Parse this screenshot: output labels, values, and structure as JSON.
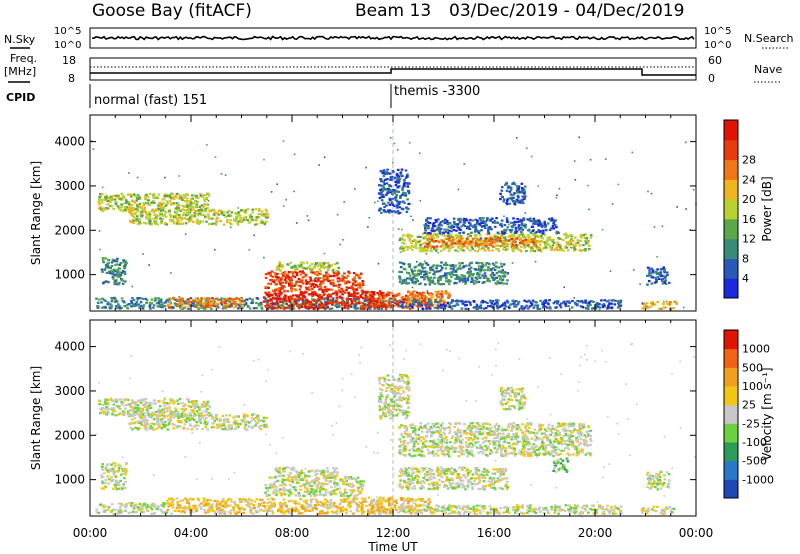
{
  "header": {
    "site": "Goose Bay (fitACF)",
    "beam": "Beam 13",
    "dates": "03/Dec/2019 - 04/Dec/2019"
  },
  "strips": {
    "nsky_label": "N.Sky",
    "nsky_ticks": [
      "10^5",
      "10^0"
    ],
    "nsearch_label": "N.Search",
    "nsearch_ticks": [
      "10^5",
      "10^0"
    ],
    "freq_label": "Freq.",
    "freq_unit": "[MHz]",
    "freq_ticks": [
      "18",
      "8"
    ],
    "nave_label": "Nave",
    "nave_ticks": [
      "60",
      "0"
    ],
    "cpid_label": "CPID",
    "cpid_segments": [
      {
        "label": "normal (fast) 151",
        "start_hour": 0,
        "end_hour": 12
      },
      {
        "label": "themis -3300",
        "start_hour": 12,
        "end_hour": 24
      }
    ]
  },
  "chart_data": [
    {
      "type": "heatmap",
      "name": "power",
      "ylabel": "Slant Range [km]",
      "yticks": [
        1000,
        2000,
        3000,
        4000
      ],
      "ylim": [
        180,
        4600
      ],
      "xlim": [
        0,
        24
      ],
      "colorbar": {
        "label": "Power [dB]",
        "ticks": [
          "4",
          "8",
          "12",
          "16",
          "20",
          "24",
          "28"
        ],
        "colors": [
          "#1a28e0",
          "#2a5ab8",
          "#3a8a78",
          "#5aa84a",
          "#b8d232",
          "#f0b41e",
          "#f07814",
          "#e83c0a",
          "#e01400"
        ]
      },
      "regions": [
        {
          "x0": 0.3,
          "x1": 4.7,
          "y0": 2450,
          "y1": 2850,
          "level": 4
        },
        {
          "x0": 1.5,
          "x1": 7.0,
          "y0": 2150,
          "y1": 2500,
          "level": 4
        },
        {
          "x0": 0.4,
          "x1": 1.4,
          "y0": 800,
          "y1": 1400,
          "level": 2
        },
        {
          "x0": 0.2,
          "x1": 12.2,
          "y0": 250,
          "y1": 500,
          "level": 2
        },
        {
          "x0": 3.0,
          "x1": 6.0,
          "y0": 280,
          "y1": 500,
          "level": 6
        },
        {
          "x0": 6.8,
          "x1": 11.6,
          "y0": 250,
          "y1": 650,
          "level": 8
        },
        {
          "x0": 6.9,
          "x1": 10.8,
          "y0": 650,
          "y1": 1100,
          "level": 7
        },
        {
          "x0": 7.3,
          "x1": 9.8,
          "y0": 1100,
          "y1": 1300,
          "level": 4
        },
        {
          "x0": 11.0,
          "x1": 13.5,
          "y0": 250,
          "y1": 620,
          "level": 7
        },
        {
          "x0": 12.2,
          "x1": 19.8,
          "y0": 1550,
          "y1": 1950,
          "level": 4
        },
        {
          "x0": 13.2,
          "x1": 17.8,
          "y0": 1650,
          "y1": 1850,
          "level": 6
        },
        {
          "x0": 13.2,
          "x1": 18.5,
          "y0": 1950,
          "y1": 2300,
          "level": 1
        },
        {
          "x0": 12.2,
          "x1": 16.5,
          "y0": 800,
          "y1": 1300,
          "level": 2
        },
        {
          "x0": 12.5,
          "x1": 14.2,
          "y0": 300,
          "y1": 650,
          "level": 6
        },
        {
          "x0": 12.2,
          "x1": 21.0,
          "y0": 250,
          "y1": 450,
          "level": 1
        },
        {
          "x0": 21.8,
          "x1": 23.2,
          "y0": 250,
          "y1": 420,
          "level": 5
        },
        {
          "x0": 22.0,
          "x1": 22.9,
          "y0": 800,
          "y1": 1200,
          "level": 1
        },
        {
          "x0": 16.2,
          "x1": 17.2,
          "y0": 2600,
          "y1": 3100,
          "level": 1
        },
        {
          "x0": 11.4,
          "x1": 12.6,
          "y0": 2400,
          "y1": 3400,
          "level": 1
        }
      ]
    },
    {
      "type": "heatmap",
      "name": "velocity",
      "ylabel": "Slant Range [km]",
      "yticks": [
        1000,
        2000,
        3000,
        4000
      ],
      "ylim": [
        180,
        4600
      ],
      "xlim": [
        0,
        24
      ],
      "colorbar": {
        "label": "Velocity [m s⁻¹]",
        "ticks": [
          "1000",
          "500",
          "100",
          "25",
          "-25",
          "-100",
          "-500",
          "-1000"
        ],
        "colors": [
          "#1e46b4",
          "#2878c8",
          "#2c9c5a",
          "#6cd240",
          "#c8c8c8",
          "#f0c814",
          "#f0a01e",
          "#f06414",
          "#e01400"
        ]
      },
      "regions": [
        {
          "x0": 0.3,
          "x1": 4.7,
          "y0": 2450,
          "y1": 2850,
          "level": 4
        },
        {
          "x0": 1.5,
          "x1": 7.0,
          "y0": 2150,
          "y1": 2500,
          "level": 4
        },
        {
          "x0": 0.4,
          "x1": 1.4,
          "y0": 800,
          "y1": 1400,
          "level": 4
        },
        {
          "x0": 0.2,
          "x1": 3.0,
          "y0": 250,
          "y1": 500,
          "level": 4
        },
        {
          "x0": 3.0,
          "x1": 11.5,
          "y0": 250,
          "y1": 600,
          "level": 5
        },
        {
          "x0": 6.9,
          "x1": 10.8,
          "y0": 650,
          "y1": 1100,
          "level": 4
        },
        {
          "x0": 7.3,
          "x1": 9.8,
          "y0": 1100,
          "y1": 1300,
          "level": 4
        },
        {
          "x0": 11.0,
          "x1": 13.5,
          "y0": 250,
          "y1": 620,
          "level": 5
        },
        {
          "x0": 12.2,
          "x1": 19.8,
          "y0": 1550,
          "y1": 2300,
          "level": 4
        },
        {
          "x0": 12.2,
          "x1": 16.5,
          "y0": 800,
          "y1": 1300,
          "level": 4
        },
        {
          "x0": 18.3,
          "x1": 18.9,
          "y0": 1200,
          "y1": 1500,
          "level": 3
        },
        {
          "x0": 12.2,
          "x1": 21.0,
          "y0": 250,
          "y1": 450,
          "level": 4
        },
        {
          "x0": 21.8,
          "x1": 23.2,
          "y0": 250,
          "y1": 420,
          "level": 4
        },
        {
          "x0": 22.0,
          "x1": 22.9,
          "y0": 800,
          "y1": 1200,
          "level": 4
        },
        {
          "x0": 16.2,
          "x1": 17.2,
          "y0": 2600,
          "y1": 3100,
          "level": 4
        },
        {
          "x0": 11.4,
          "x1": 12.6,
          "y0": 2400,
          "y1": 3400,
          "level": 4
        }
      ]
    }
  ],
  "x_axis": {
    "xlabel": "Time UT",
    "ticks": [
      "00:00",
      "04:00",
      "08:00",
      "12:00",
      "16:00",
      "20:00",
      "00:00"
    ]
  }
}
